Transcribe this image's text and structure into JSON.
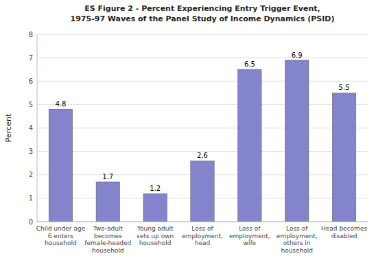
{
  "chart_data": {
    "type": "bar",
    "title": "ES Figure 2 - Percent Experiencing Entry Trigger Event,\n1975-97 Waves of the Panel Study of Income Dynamics (PSID)",
    "categories": [
      "Child under age\n6 enters\nhousehold",
      "Two-adult\nbecomes\nfemale-headed\nhousehold",
      "Young adult\nsets up own\nhousehold",
      "Loss of\nemployment,\nhead",
      "Loss of\nemployment,\nwife",
      "Loss of\nemployment,\nothers in\nhousehold",
      "Head becomes\ndisabled"
    ],
    "values": [
      4.8,
      1.7,
      1.2,
      2.6,
      6.5,
      6.9,
      5.5
    ],
    "color": "#8484cc",
    "ylabel": "Percent",
    "ylim": [
      0,
      8
    ],
    "yticks": [
      0,
      1,
      2,
      3,
      4,
      5,
      6,
      7,
      8
    ],
    "grid": true,
    "data_labels": true
  }
}
